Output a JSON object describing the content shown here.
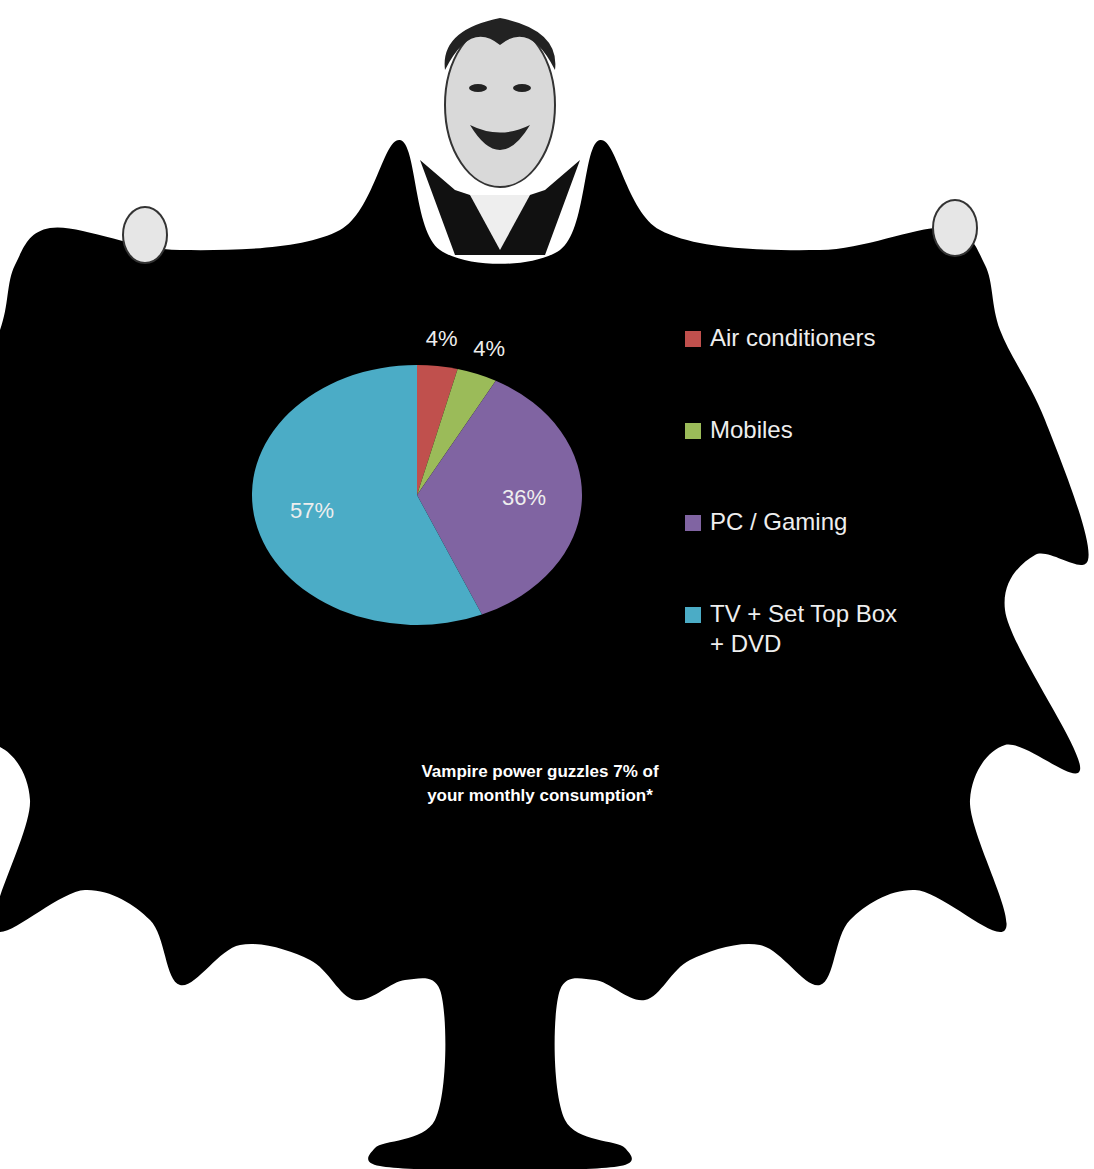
{
  "chart_data": {
    "type": "pie",
    "categories": [
      "Air conditioners",
      "Mobiles",
      "PC / Gaming",
      "TV + Set Top Box + DVD"
    ],
    "values": [
      4,
      4,
      36,
      57
    ],
    "value_labels": [
      "4%",
      "4%",
      "36%",
      "57%"
    ],
    "colors": [
      "#c0504d",
      "#9bbb59",
      "#8064a2",
      "#4bacc6"
    ],
    "data_labels": true,
    "legend": "right",
    "annotations": [
      "Vampire power guzzles 7% of your monthly consumption*"
    ]
  }
}
